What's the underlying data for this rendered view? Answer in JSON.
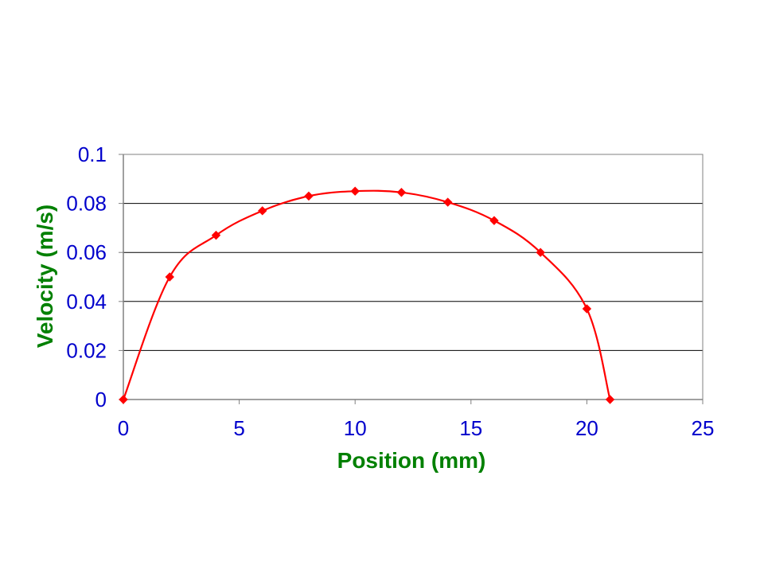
{
  "chart_data": {
    "type": "scatter",
    "title": "",
    "xlabel": "Position (mm)",
    "ylabel": "Velocity (m/s)",
    "xlim": [
      0,
      25
    ],
    "ylim": [
      0,
      0.1
    ],
    "x_ticks": [
      "0",
      "5",
      "10",
      "15",
      "20",
      "25"
    ],
    "y_ticks": [
      "0",
      "0.02",
      "0.04",
      "0.06",
      "0.08",
      "0.1"
    ],
    "grid": "horizontal",
    "legend": "none",
    "line_style": "smoothed line with diamond markers",
    "series": [
      {
        "color": "#ff0000",
        "points": [
          {
            "x": 0,
            "y": 0
          },
          {
            "x": 2,
            "y": 0.05
          },
          {
            "x": 4,
            "y": 0.067
          },
          {
            "x": 6,
            "y": 0.077
          },
          {
            "x": 8,
            "y": 0.083
          },
          {
            "x": 10,
            "y": 0.085
          },
          {
            "x": 12,
            "y": 0.0845
          },
          {
            "x": 14,
            "y": 0.0805
          },
          {
            "x": 16,
            "y": 0.073
          },
          {
            "x": 18,
            "y": 0.06
          },
          {
            "x": 20,
            "y": 0.037
          },
          {
            "x": 21,
            "y": 0
          }
        ]
      }
    ]
  },
  "colors": {
    "tick_text": "#0000cc",
    "axis_title": "#008000",
    "series_line": "#ff0000",
    "grid": "#000000",
    "frame": "#808080"
  }
}
